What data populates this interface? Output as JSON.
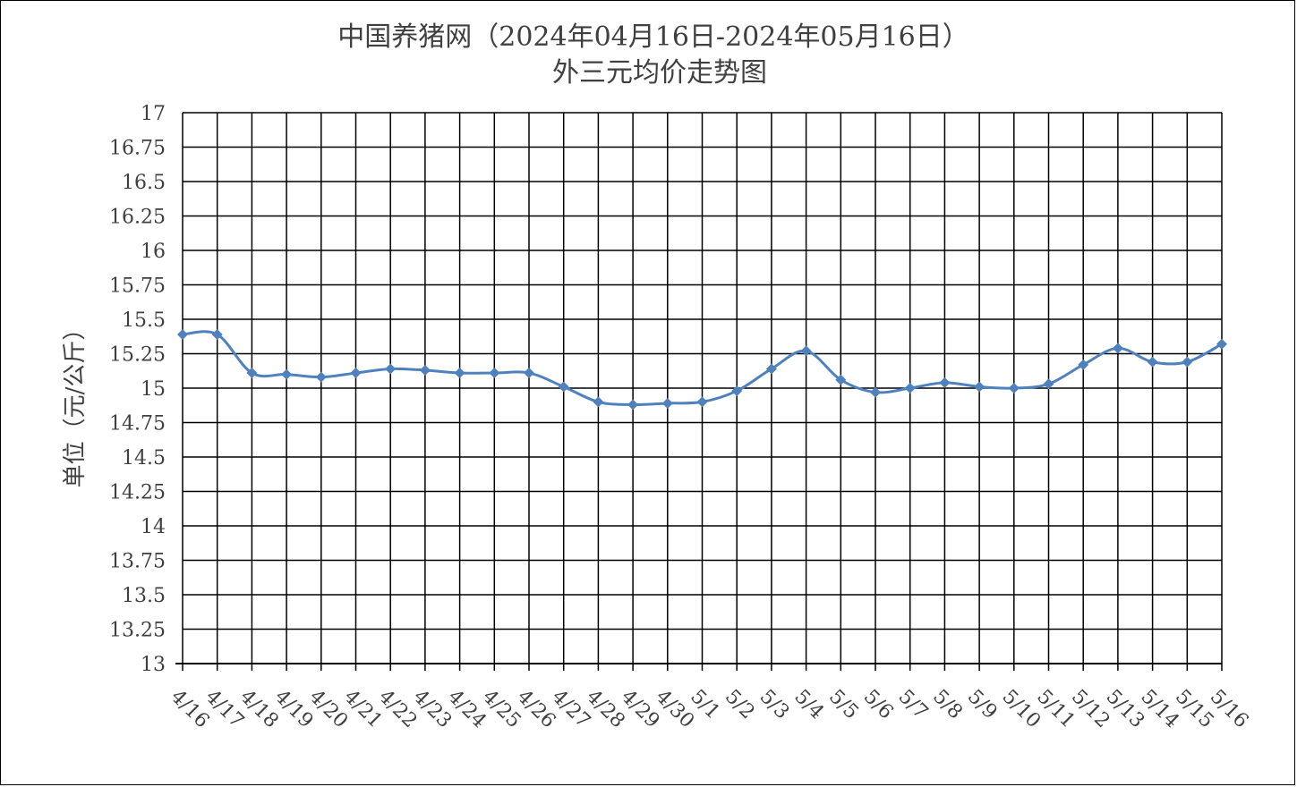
{
  "chart_data": {
    "type": "line",
    "title": "中国养猪网（2024年04月16日-2024年05月16日）",
    "subtitle": "外三元均价走势图",
    "ylabel": "单位（元/公斤）",
    "xlabel": "",
    "ylim": [
      13,
      17
    ],
    "ytick_step": 0.25,
    "yticks": [
      "13",
      "13.25",
      "13.5",
      "13.75",
      "14",
      "14.25",
      "14.5",
      "14.75",
      "15",
      "15.25",
      "15.5",
      "15.75",
      "16",
      "16.25",
      "16.5",
      "16.75",
      "17"
    ],
    "grid": true,
    "legend": "none",
    "categories": [
      "4/16",
      "4/17",
      "4/18",
      "4/19",
      "4/20",
      "4/21",
      "4/22",
      "4/23",
      "4/24",
      "4/25",
      "4/26",
      "4/27",
      "4/28",
      "4/29",
      "4/30",
      "5/1",
      "5/2",
      "5/3",
      "5/4",
      "5/5",
      "5/6",
      "5/7",
      "5/8",
      "5/9",
      "5/10",
      "5/11",
      "5/12",
      "5/13",
      "5/14",
      "5/15",
      "5/16"
    ],
    "series": [
      {
        "color": "#4f81bd",
        "values": [
          15.39,
          15.39,
          15.11,
          15.1,
          15.08,
          15.11,
          15.14,
          15.13,
          15.11,
          15.11,
          15.11,
          15.01,
          14.9,
          14.88,
          14.89,
          14.9,
          14.98,
          15.14,
          15.27,
          15.06,
          14.97,
          15.0,
          15.04,
          15.01,
          15.0,
          15.03,
          15.17,
          15.29,
          15.19,
          15.19,
          15.32
        ]
      }
    ]
  }
}
